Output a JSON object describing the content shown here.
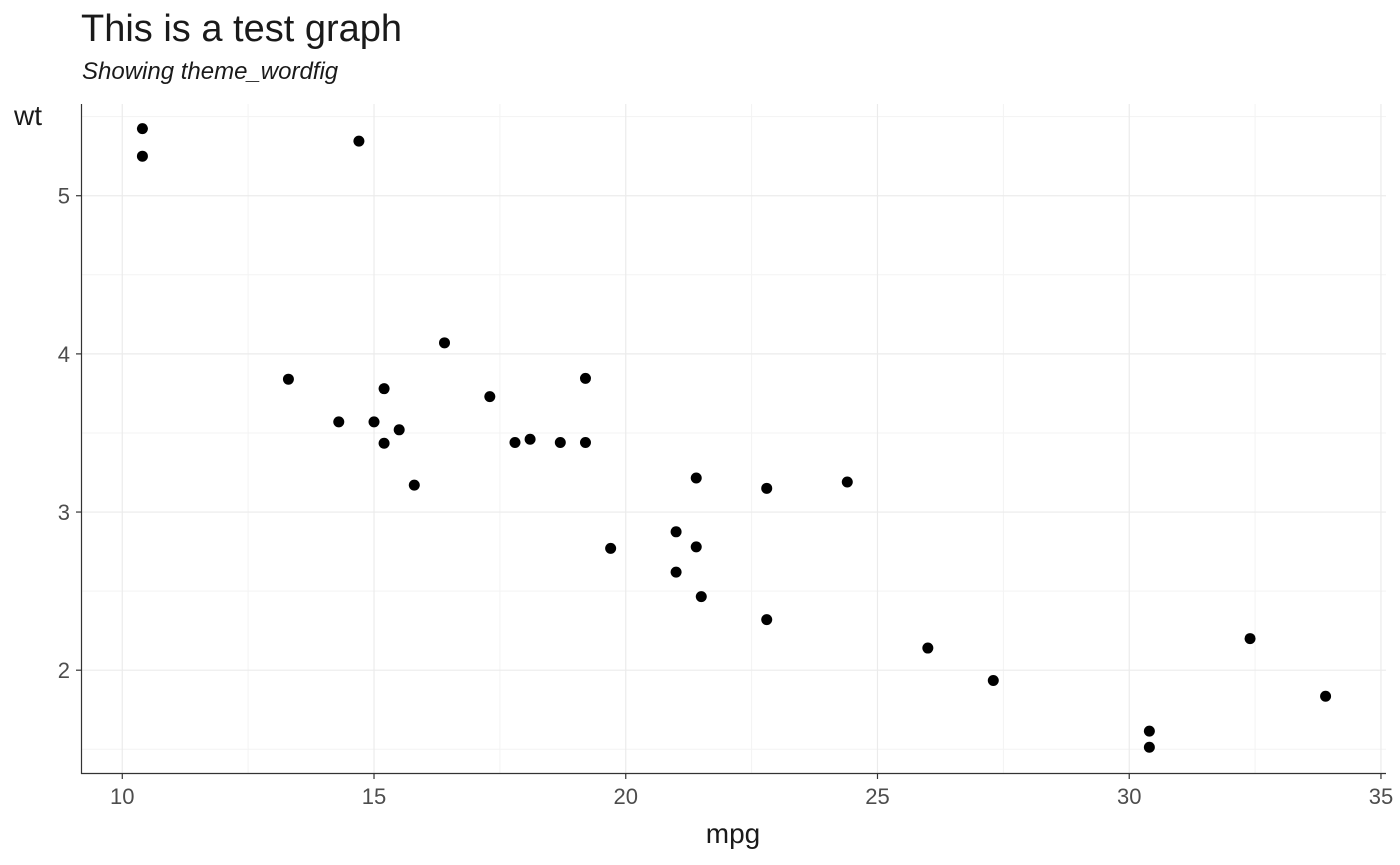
{
  "chart_data": {
    "type": "scatter",
    "title": "This is a test graph",
    "subtitle": "Showing theme_wordfig",
    "xlabel": "mpg",
    "ylabel": "wt",
    "xlim": [
      9.2,
      35.1
    ],
    "ylim": [
      1.35,
      5.58
    ],
    "xticks": [
      10,
      15,
      20,
      25,
      30,
      35
    ],
    "xtick_labels": [
      "10",
      "15",
      "20",
      "25",
      "30",
      "35"
    ],
    "yticks": [
      2,
      3,
      4,
      5
    ],
    "ytick_labels": [
      "2",
      "3",
      "4",
      "5"
    ],
    "x_minor": [
      12.5,
      17.5,
      22.5,
      27.5,
      32.5
    ],
    "y_minor": [
      1.5,
      2.5,
      3.5,
      4.5,
      5.5
    ],
    "grid": true,
    "legend": "none",
    "colors": {
      "point": "#000000",
      "grid_major": "#ebebeb",
      "grid_minor": "#f3f3f3",
      "axis": "#333333",
      "text": "#1a1a1a",
      "tick_text": "#4d4d4d"
    },
    "points": [
      {
        "x": 21.0,
        "y": 2.62
      },
      {
        "x": 21.0,
        "y": 2.875
      },
      {
        "x": 22.8,
        "y": 2.32
      },
      {
        "x": 21.4,
        "y": 3.215
      },
      {
        "x": 18.7,
        "y": 3.44
      },
      {
        "x": 18.1,
        "y": 3.46
      },
      {
        "x": 14.3,
        "y": 3.57
      },
      {
        "x": 24.4,
        "y": 3.19
      },
      {
        "x": 22.8,
        "y": 3.15
      },
      {
        "x": 19.2,
        "y": 3.44
      },
      {
        "x": 17.8,
        "y": 3.44
      },
      {
        "x": 16.4,
        "y": 4.07
      },
      {
        "x": 17.3,
        "y": 3.73
      },
      {
        "x": 15.2,
        "y": 3.78
      },
      {
        "x": 10.4,
        "y": 5.25
      },
      {
        "x": 10.4,
        "y": 5.424
      },
      {
        "x": 14.7,
        "y": 5.345
      },
      {
        "x": 32.4,
        "y": 2.2
      },
      {
        "x": 30.4,
        "y": 1.615
      },
      {
        "x": 33.9,
        "y": 1.835
      },
      {
        "x": 21.5,
        "y": 2.465
      },
      {
        "x": 15.5,
        "y": 3.52
      },
      {
        "x": 15.2,
        "y": 3.435
      },
      {
        "x": 13.3,
        "y": 3.84
      },
      {
        "x": 19.2,
        "y": 3.845
      },
      {
        "x": 27.3,
        "y": 1.935
      },
      {
        "x": 26.0,
        "y": 2.14
      },
      {
        "x": 30.4,
        "y": 1.513
      },
      {
        "x": 15.8,
        "y": 3.17
      },
      {
        "x": 19.7,
        "y": 2.77
      },
      {
        "x": 15.0,
        "y": 3.57
      },
      {
        "x": 21.4,
        "y": 2.78
      }
    ]
  }
}
